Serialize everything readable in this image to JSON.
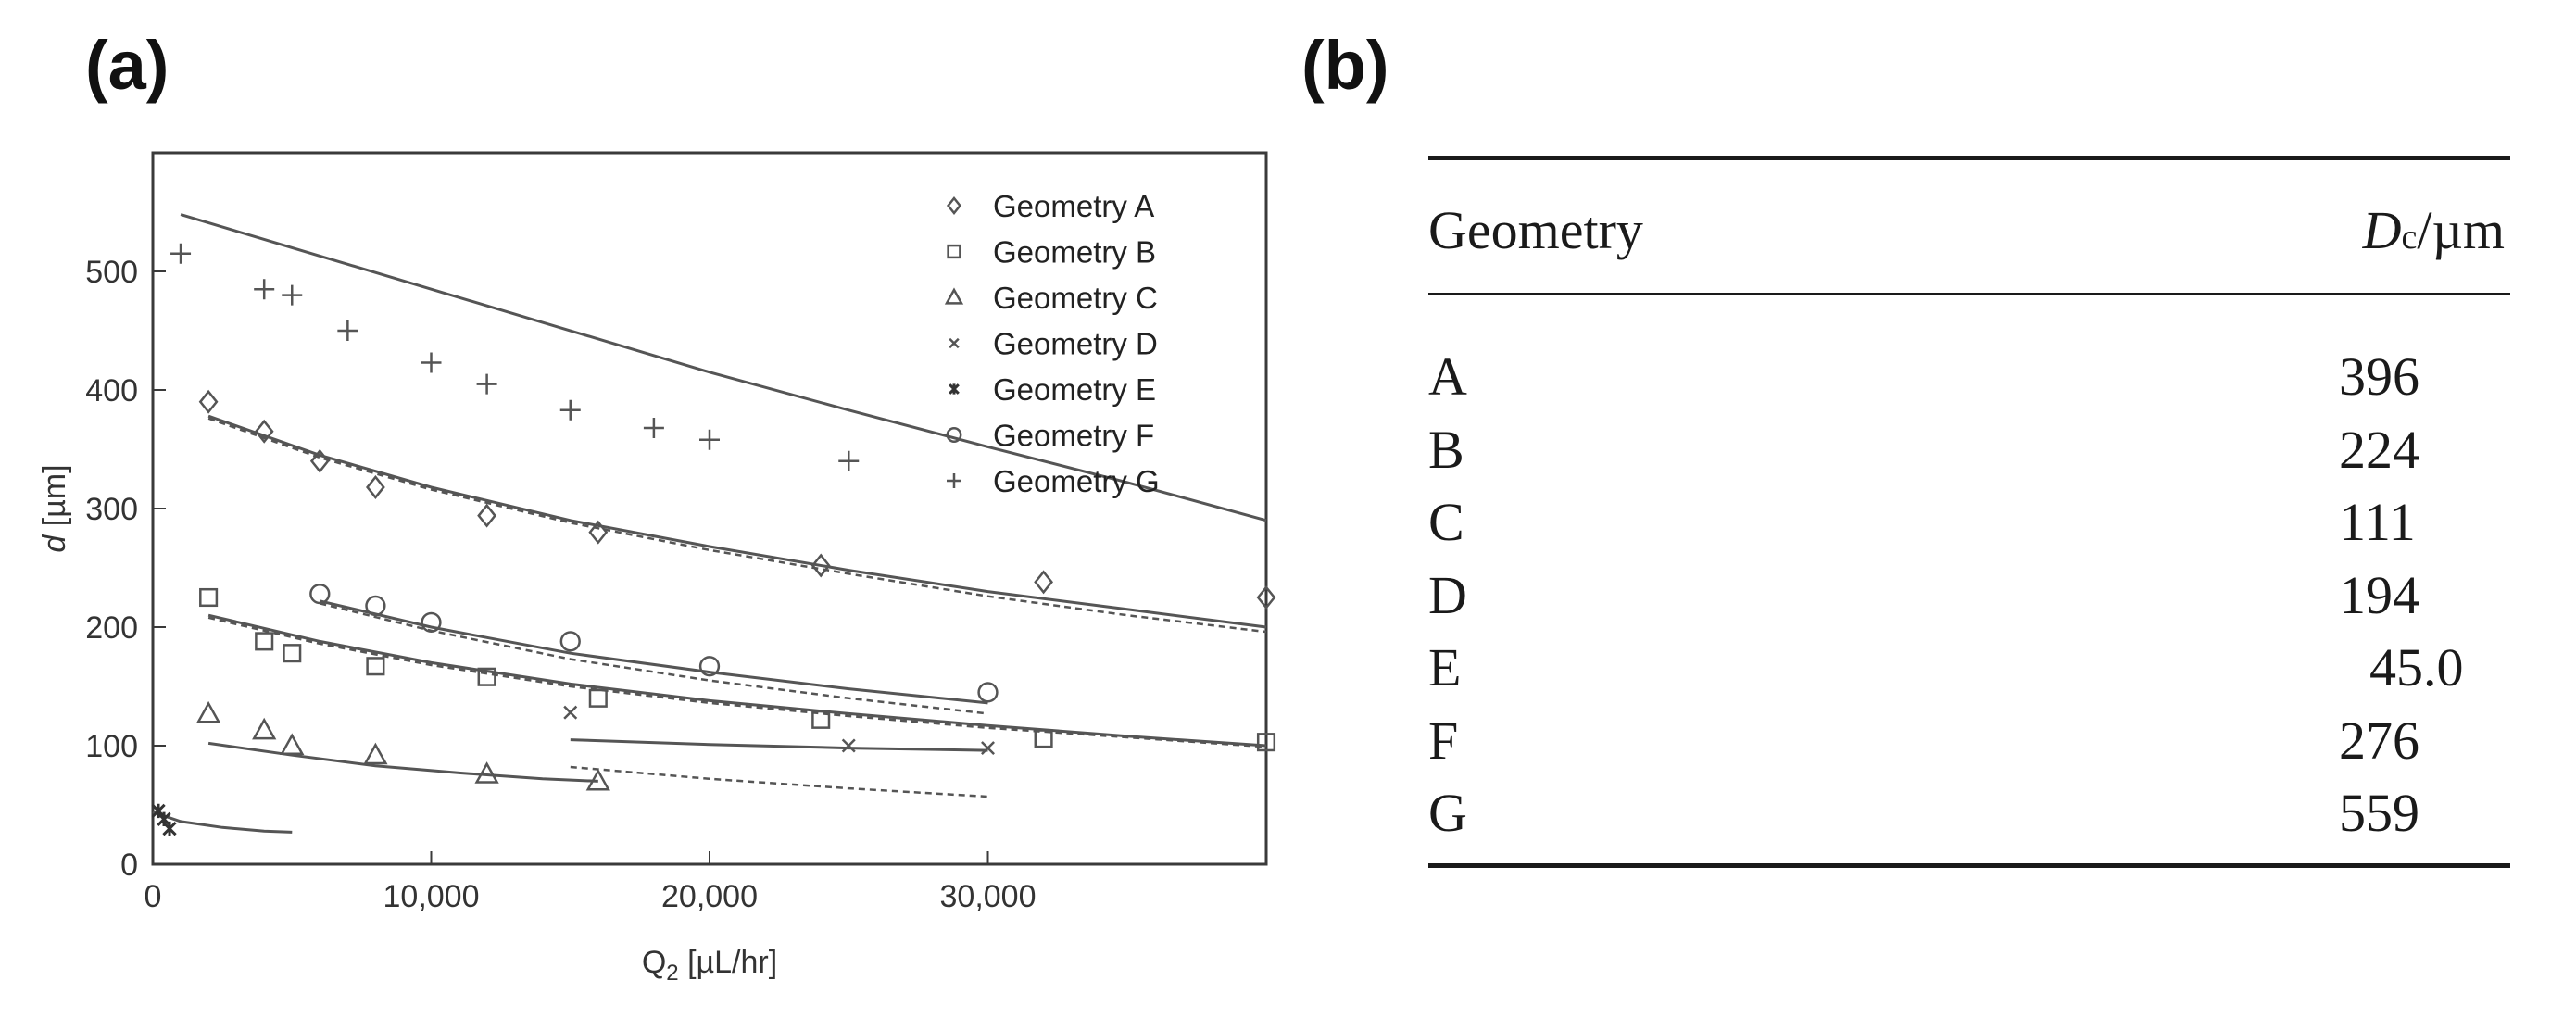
{
  "panels": {
    "a_label": "(a)",
    "b_label": "(b)"
  },
  "chart_data": {
    "type": "scatter",
    "title": "",
    "xlabel": "Q",
    "xlabel_sub": "2",
    "xlabel_unit": " [µL/hr]",
    "ylabel_italic": "d",
    "ylabel_unit": " [µm]",
    "xlim": [
      0,
      40000
    ],
    "ylim": [
      0,
      600
    ],
    "x_ticks": [
      0,
      10000,
      20000,
      30000
    ],
    "x_tick_labels": [
      "0",
      "10,000",
      "20,000",
      "30,000"
    ],
    "y_ticks": [
      0,
      100,
      200,
      300,
      400,
      500
    ],
    "y_tick_labels": [
      "0",
      "100",
      "200",
      "300",
      "400",
      "500"
    ],
    "grid": false,
    "legend_position": "top-right",
    "series": [
      {
        "name": "Geometry A",
        "marker": "diamond",
        "x": [
          2000,
          4000,
          6000,
          8000,
          12000,
          16000,
          24000,
          32000,
          40000
        ],
        "y": [
          390,
          365,
          340,
          318,
          294,
          280,
          252,
          238,
          225
        ],
        "fit_solid": [
          [
            2000,
            378
          ],
          [
            6000,
            345
          ],
          [
            10000,
            318
          ],
          [
            15000,
            290
          ],
          [
            20000,
            268
          ],
          [
            25000,
            248
          ],
          [
            30000,
            230
          ],
          [
            35000,
            215
          ],
          [
            40000,
            200
          ]
        ],
        "fit_dashed": [
          [
            2000,
            376
          ],
          [
            6000,
            343
          ],
          [
            10000,
            316
          ],
          [
            15000,
            288
          ],
          [
            20000,
            265
          ],
          [
            25000,
            245
          ],
          [
            30000,
            226
          ],
          [
            35000,
            210
          ],
          [
            40000,
            196
          ]
        ]
      },
      {
        "name": "Geometry B",
        "marker": "square",
        "x": [
          2000,
          4000,
          5000,
          8000,
          12000,
          16000,
          24000,
          32000,
          40000
        ],
        "y": [
          225,
          188,
          178,
          167,
          158,
          140,
          122,
          106,
          103
        ],
        "fit_solid": [
          [
            2000,
            210
          ],
          [
            6000,
            188
          ],
          [
            10000,
            170
          ],
          [
            15000,
            152
          ],
          [
            20000,
            138
          ],
          [
            25000,
            127
          ],
          [
            30000,
            117
          ],
          [
            35000,
            108
          ],
          [
            40000,
            100
          ]
        ],
        "fit_dashed": [
          [
            2000,
            208
          ],
          [
            6000,
            186
          ],
          [
            10000,
            168
          ],
          [
            15000,
            150
          ],
          [
            20000,
            136
          ],
          [
            25000,
            125
          ],
          [
            30000,
            115
          ],
          [
            35000,
            107
          ],
          [
            40000,
            99
          ]
        ]
      },
      {
        "name": "Geometry C",
        "marker": "triangle",
        "x": [
          2000,
          4000,
          5000,
          8000,
          12000,
          16000
        ],
        "y": [
          127,
          113,
          100,
          92,
          76,
          70
        ],
        "fit_solid": [
          [
            2000,
            102
          ],
          [
            5000,
            92
          ],
          [
            8000,
            83
          ],
          [
            11000,
            77
          ],
          [
            14000,
            72
          ],
          [
            16000,
            70
          ]
        ],
        "fit_dashed": []
      },
      {
        "name": "Geometry D",
        "marker": "x",
        "x": [
          15000,
          25000,
          30000
        ],
        "y": [
          128,
          100,
          98
        ],
        "fit_solid": [
          [
            15000,
            105
          ],
          [
            20000,
            101
          ],
          [
            25000,
            98
          ],
          [
            30000,
            96
          ]
        ],
        "fit_dashed": [
          [
            15000,
            82
          ],
          [
            20000,
            72
          ],
          [
            25000,
            64
          ],
          [
            30000,
            57
          ]
        ]
      },
      {
        "name": "Geometry E",
        "marker": "asterisk",
        "x": [
          200,
          400,
          600
        ],
        "y": [
          45,
          38,
          30
        ],
        "fit_solid": [
          [
            0,
            44
          ],
          [
            1000,
            36
          ],
          [
            2500,
            31
          ],
          [
            4000,
            28
          ],
          [
            5000,
            27
          ]
        ],
        "fit_dashed": []
      },
      {
        "name": "Geometry F",
        "marker": "circle",
        "x": [
          6000,
          8000,
          10000,
          15000,
          20000,
          30000
        ],
        "y": [
          228,
          218,
          204,
          188,
          167,
          145
        ],
        "fit_solid": [
          [
            6000,
            222
          ],
          [
            10000,
            200
          ],
          [
            15000,
            178
          ],
          [
            20000,
            162
          ],
          [
            25000,
            148
          ],
          [
            30000,
            136
          ]
        ],
        "fit_dashed": [
          [
            6000,
            220
          ],
          [
            10000,
            197
          ],
          [
            15000,
            173
          ],
          [
            20000,
            155
          ],
          [
            25000,
            140
          ],
          [
            30000,
            127
          ]
        ]
      },
      {
        "name": "Geometry G",
        "marker": "plus",
        "x": [
          1000,
          4000,
          5000,
          7000,
          10000,
          12000,
          15000,
          18000,
          20000,
          25000
        ],
        "y": [
          515,
          485,
          480,
          450,
          423,
          405,
          383,
          368,
          358,
          340
        ],
        "fit_solid": [
          [
            1000,
            548
          ],
          [
            5000,
            520
          ],
          [
            10000,
            485
          ],
          [
            15000,
            450
          ],
          [
            20000,
            415
          ],
          [
            25000,
            383
          ],
          [
            30000,
            352
          ],
          [
            35000,
            322
          ],
          [
            40000,
            290
          ]
        ],
        "fit_dashed": []
      }
    ]
  },
  "table": {
    "header_geometry": "Geometry",
    "header_dc_main": "D",
    "header_dc_sub": "c",
    "header_dc_unit": "/µm",
    "rows": [
      {
        "geometry": "A",
        "value": "396"
      },
      {
        "geometry": "B",
        "value": "224"
      },
      {
        "geometry": "C",
        "value": "111"
      },
      {
        "geometry": "D",
        "value": "194"
      },
      {
        "geometry": "E",
        "value": "45.0"
      },
      {
        "geometry": "F",
        "value": "276"
      },
      {
        "geometry": "G",
        "value": "559"
      }
    ]
  }
}
